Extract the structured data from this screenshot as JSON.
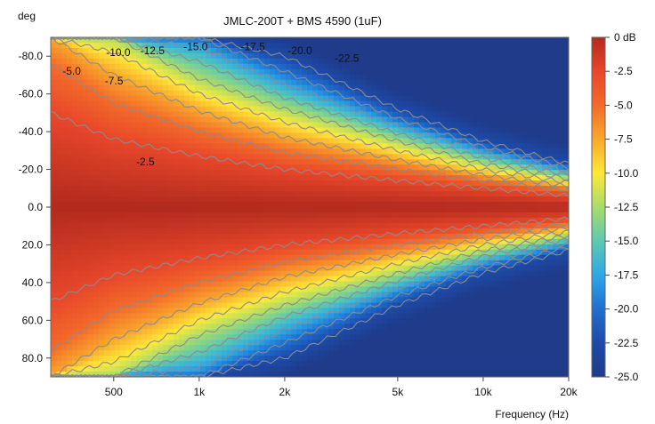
{
  "chart_data": {
    "type": "heatmap",
    "title": "JMLC-200T + BMS 4590 (1uF)",
    "xlabel": "Frequency (Hz)",
    "ylabel": "deg",
    "xscale": "log",
    "xlim": [
      300,
      20000
    ],
    "ylim": [
      -90,
      90
    ],
    "x_ticks": [
      {
        "value": 500,
        "label": "500"
      },
      {
        "value": 1000,
        "label": "1k"
      },
      {
        "value": 2000,
        "label": "2k"
      },
      {
        "value": 5000,
        "label": "5k"
      },
      {
        "value": 10000,
        "label": "10k"
      },
      {
        "value": 20000,
        "label": "20k"
      }
    ],
    "y_ticks": [
      {
        "value": -80,
        "label": "-80.0"
      },
      {
        "value": -60,
        "label": "-60.0"
      },
      {
        "value": -40,
        "label": "-40.0"
      },
      {
        "value": -20,
        "label": "-20.0"
      },
      {
        "value": 0,
        "label": "0.0"
      },
      {
        "value": 20,
        "label": "20.0"
      },
      {
        "value": 40,
        "label": "40.0"
      },
      {
        "value": 60,
        "label": "60.0"
      },
      {
        "value": 80,
        "label": "80.0"
      }
    ],
    "colorbar": {
      "range": [
        -25,
        0
      ],
      "unit": "dB",
      "ticks": [
        {
          "value": 0,
          "label": "0 dB"
        },
        {
          "value": -2.5,
          "label": "-2.5"
        },
        {
          "value": -5,
          "label": "-5.0"
        },
        {
          "value": -7.5,
          "label": "-7.5"
        },
        {
          "value": -10,
          "label": "-10.0"
        },
        {
          "value": -12.5,
          "label": "-12.5"
        },
        {
          "value": -15,
          "label": "-15.0"
        },
        {
          "value": -17.5,
          "label": "-17.5"
        },
        {
          "value": -20,
          "label": "-20.0"
        },
        {
          "value": -22.5,
          "label": "-22.5"
        },
        {
          "value": -25,
          "label": "-25.0"
        }
      ],
      "stops": [
        {
          "value": 0,
          "color": "#b22a1e"
        },
        {
          "value": -2.5,
          "color": "#e8472a"
        },
        {
          "value": -5,
          "color": "#f36b2a"
        },
        {
          "value": -7.5,
          "color": "#f9a72c"
        },
        {
          "value": -10,
          "color": "#fde93a"
        },
        {
          "value": -12.5,
          "color": "#a9dc6a"
        },
        {
          "value": -15,
          "color": "#5ec9b0"
        },
        {
          "value": -17.5,
          "color": "#2ea8e6"
        },
        {
          "value": -20,
          "color": "#1f6fd0"
        },
        {
          "value": -22.5,
          "color": "#1d4aa8"
        },
        {
          "value": -25,
          "color": "#1f3b8a"
        }
      ]
    },
    "contour_levels": [
      -2.5,
      -5,
      -7.5,
      -10,
      -12.5,
      -15,
      -17.5,
      -20,
      -22.5
    ],
    "contour_color": "#8c8c8c",
    "beamwidth_model": {
      "description": "Approximate angle (deg) at which each contour level is reached, by frequency",
      "frequencies": [
        300,
        500,
        1000,
        2000,
        5000,
        10000,
        20000
      ],
      "levels": [
        {
          "level": -2.5,
          "angles": [
            50,
            36,
            27,
            20,
            14,
            10,
            6
          ]
        },
        {
          "level": -5,
          "angles": [
            76,
            55,
            40,
            29,
            20,
            14,
            9
          ]
        },
        {
          "level": -7.5,
          "angles": [
            90,
            70,
            51,
            37,
            25,
            17,
            11
          ]
        },
        {
          "level": -10,
          "angles": [
            90,
            82,
            60,
            45,
            30,
            20,
            13
          ]
        },
        {
          "level": -12.5,
          "angles": [
            90,
            90,
            68,
            52,
            35,
            23,
            15
          ]
        },
        {
          "level": -15,
          "angles": [
            90,
            90,
            77,
            58,
            39,
            26,
            17
          ]
        },
        {
          "level": -17.5,
          "angles": [
            90,
            90,
            85,
            65,
            43,
            29,
            19
          ]
        },
        {
          "level": -20,
          "angles": [
            90,
            90,
            90,
            72,
            47,
            32,
            21
          ]
        },
        {
          "level": -22.5,
          "angles": [
            90,
            90,
            90,
            80,
            52,
            35,
            23
          ]
        }
      ]
    },
    "annotations": [
      {
        "text": "-5.0",
        "freq": 330,
        "deg": -72
      },
      {
        "text": "-7.5",
        "freq": 465,
        "deg": -67
      },
      {
        "text": "-2.5",
        "freq": 600,
        "deg": -24
      },
      {
        "text": "-10.0",
        "freq": 470,
        "deg": -82
      },
      {
        "text": "-12.5",
        "freq": 620,
        "deg": -83
      },
      {
        "text": "-15.0",
        "freq": 880,
        "deg": -85
      },
      {
        "text": "-17.5",
        "freq": 1400,
        "deg": -85
      },
      {
        "text": "-20.0",
        "freq": 2050,
        "deg": -83
      },
      {
        "text": "-22.5",
        "freq": 3000,
        "deg": -79
      }
    ]
  }
}
